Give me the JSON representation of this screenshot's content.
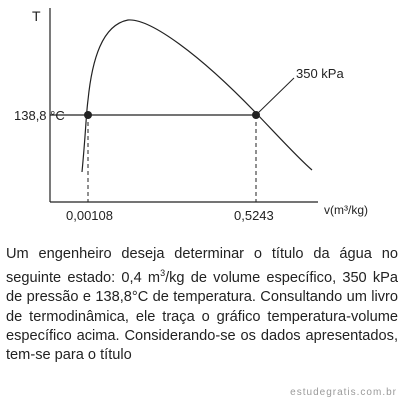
{
  "diagram": {
    "y_axis_label": "T",
    "x_axis_label": "v(m³/kg)",
    "temperature_label": "138,8 °C",
    "isobar_label": "350 kPa",
    "x_tick_left": "0,00108",
    "x_tick_right": "0,5243"
  },
  "question": {
    "part1": "Um engenheiro deseja determinar o título da água no seguinte estado: 0,4 m",
    "sup": "3",
    "part2": "/kg de volume específico, 350 kPa de pressão e 138,8°C de temperatura. Consultando um livro de termodinâmica, ele traça o gráfico temperatura-volume específico acima. Considerando-se os dados apresentados, tem-se para o título"
  },
  "watermark": "estudegratis.com.br",
  "colors": {
    "line": "#222222",
    "text": "#222222",
    "watermark": "#9a9a9a"
  }
}
